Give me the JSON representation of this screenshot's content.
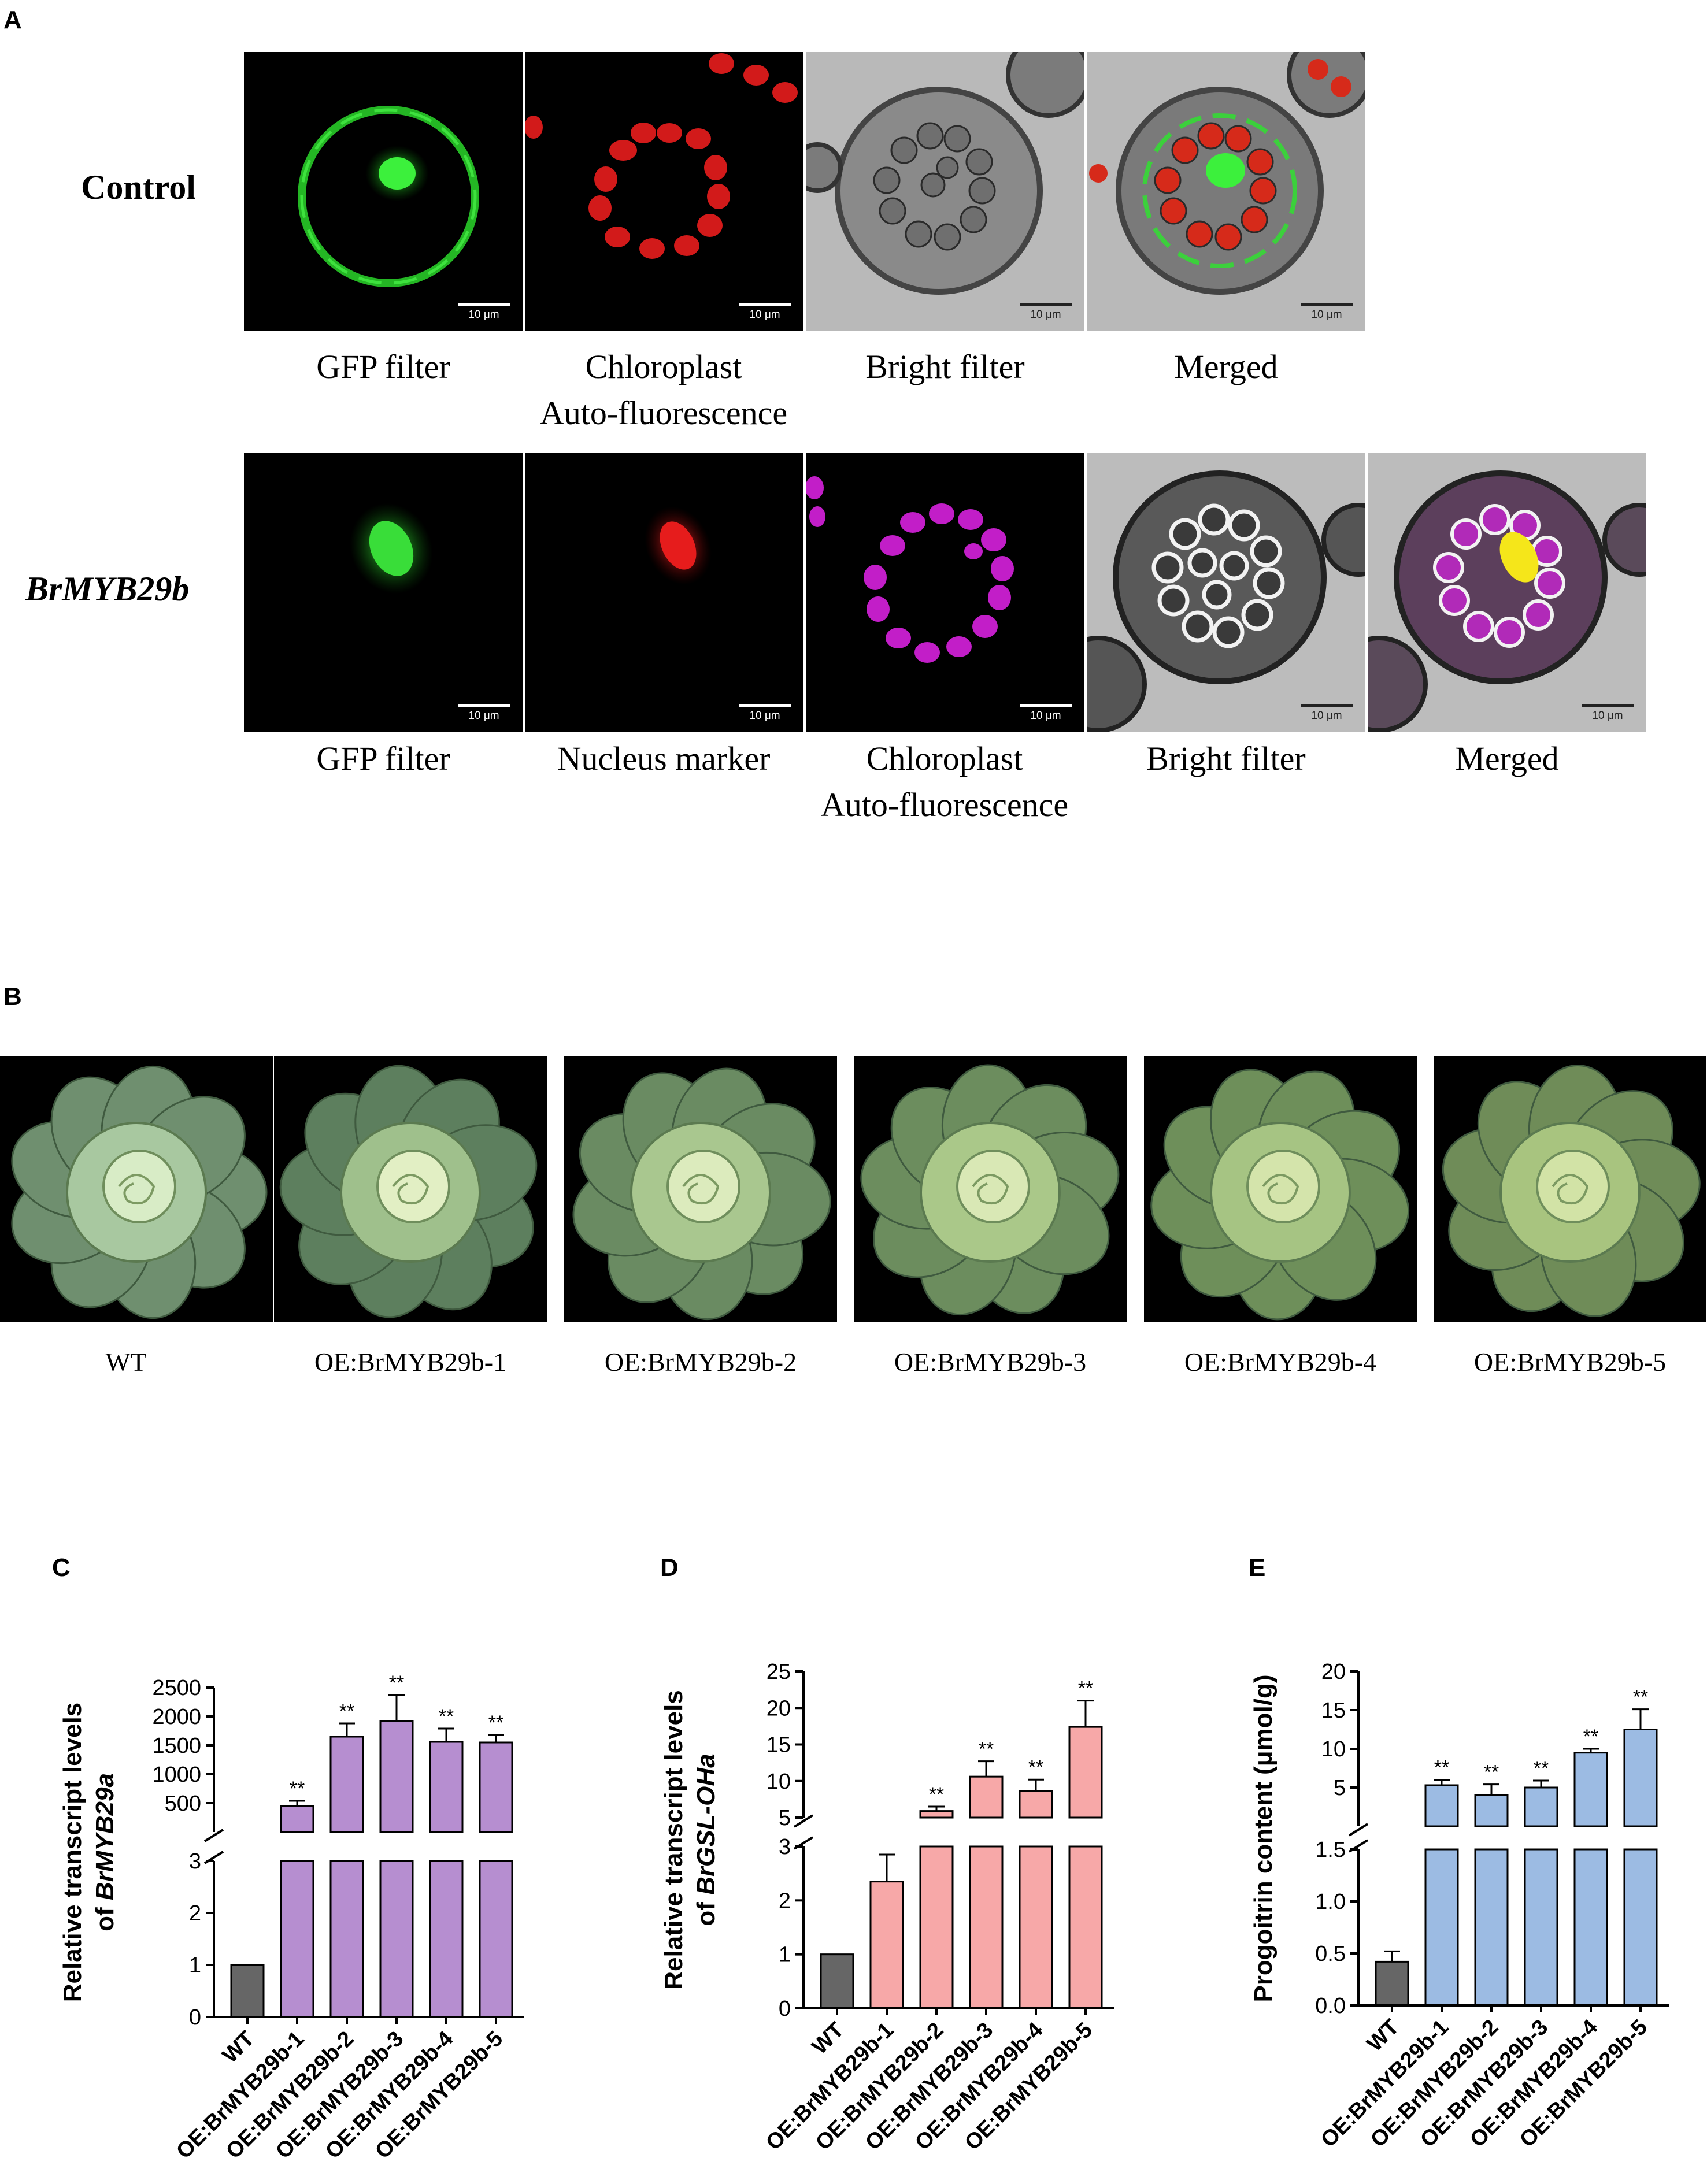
{
  "panels": {
    "a": "A",
    "b": "B",
    "c": "C",
    "d": "D",
    "e": "E"
  },
  "panel_a": {
    "row1_label": "Control",
    "row2_label": "BrMYB29b",
    "scale_bar": "10 μm",
    "row1_captions": [
      "GFP filter",
      "Chloroplast\nAuto-fluorescence",
      "Bright filter",
      "Merged"
    ],
    "row2_captions": [
      "GFP filter",
      "Nucleus marker",
      "Chloroplast\nAuto-fluorescence",
      "Bright filter",
      "Merged"
    ]
  },
  "panel_b": {
    "labels": [
      "WT",
      "OE:BrMYB29b-1",
      "OE:BrMYB29b-2",
      "OE:BrMYB29b-3",
      "OE:BrMYB29b-4",
      "OE:BrMYB29b-5"
    ]
  },
  "chart_data": [
    {
      "panel": "C",
      "type": "bar",
      "ylabel_line1": "Relative transcript levels",
      "ylabel_line2_prefix": "of ",
      "ylabel_line2_gene": "BrMYB29a",
      "categories": [
        "WT",
        "OE:BrMYB29b-1",
        "OE:BrMYB29b-2",
        "OE:BrMYB29b-3",
        "OE:BrMYB29b-4",
        "OE:BrMYB29b-5"
      ],
      "values": [
        1,
        450,
        1650,
        1920,
        1560,
        1550
      ],
      "errors": [
        0,
        90,
        230,
        450,
        230,
        130
      ],
      "significance": [
        "",
        "**",
        "**",
        "**",
        "**",
        "**"
      ],
      "colors": [
        "#666666",
        "#b68ed0",
        "#b68ed0",
        "#b68ed0",
        "#b68ed0",
        "#b68ed0"
      ],
      "broken_axis": true,
      "lower_segment": {
        "ylim": [
          0,
          3
        ],
        "ticks": [
          "0",
          "1",
          "2",
          "3"
        ]
      },
      "upper_segment": {
        "ylim": [
          0,
          2500
        ],
        "ticks": [
          "500",
          "1000",
          "1500",
          "2000",
          "2500"
        ]
      }
    },
    {
      "panel": "D",
      "type": "bar",
      "ylabel_line1": "Relative transcript levels",
      "ylabel_line2_prefix": "of ",
      "ylabel_line2_gene": "BrGSL-OHa",
      "categories": [
        "WT",
        "OE:BrMYB29b-1",
        "OE:BrMYB29b-2",
        "OE:BrMYB29b-3",
        "OE:BrMYB29b-4",
        "OE:BrMYB29b-5"
      ],
      "values": [
        1,
        2.35,
        5.9,
        10.6,
        8.6,
        17.4
      ],
      "errors": [
        0,
        0.5,
        0.6,
        2.1,
        1.6,
        3.6
      ],
      "significance": [
        "",
        "**",
        "**",
        "**",
        "**",
        "**"
      ],
      "colors": [
        "#666666",
        "#f7a8a8",
        "#f7a8a8",
        "#f7a8a8",
        "#f7a8a8",
        "#f7a8a8"
      ],
      "broken_axis": true,
      "lower_segment": {
        "ylim": [
          0,
          3
        ],
        "ticks": [
          "0",
          "1",
          "2",
          "3"
        ]
      },
      "upper_segment": {
        "ylim": [
          5,
          25
        ],
        "ticks": [
          "5",
          "10",
          "15",
          "20",
          "25"
        ]
      }
    },
    {
      "panel": "E",
      "type": "bar",
      "ylabel_line1": "Progoitrin content (μmol/g)",
      "ylabel_line2_prefix": "",
      "ylabel_line2_gene": "",
      "categories": [
        "WT",
        "OE:BrMYB29b-1",
        "OE:BrMYB29b-2",
        "OE:BrMYB29b-3",
        "OE:BrMYB29b-4",
        "OE:BrMYB29b-5"
      ],
      "values": [
        0.42,
        5.3,
        4.0,
        5.0,
        9.5,
        12.5
      ],
      "errors": [
        0.1,
        0.7,
        1.4,
        0.9,
        0.5,
        2.6
      ],
      "significance": [
        "",
        "**",
        "**",
        "**",
        "**",
        "**"
      ],
      "colors": [
        "#666666",
        "#9cbbe3",
        "#9cbbe3",
        "#9cbbe3",
        "#9cbbe3",
        "#9cbbe3"
      ],
      "broken_axis": true,
      "lower_segment": {
        "ylim": [
          0,
          1.5
        ],
        "ticks": [
          "0.0",
          "0.5",
          "1.0",
          "1.5"
        ]
      },
      "upper_segment": {
        "ylim": [
          0,
          20
        ],
        "ticks": [
          "5",
          "10",
          "15",
          "20"
        ]
      }
    }
  ]
}
